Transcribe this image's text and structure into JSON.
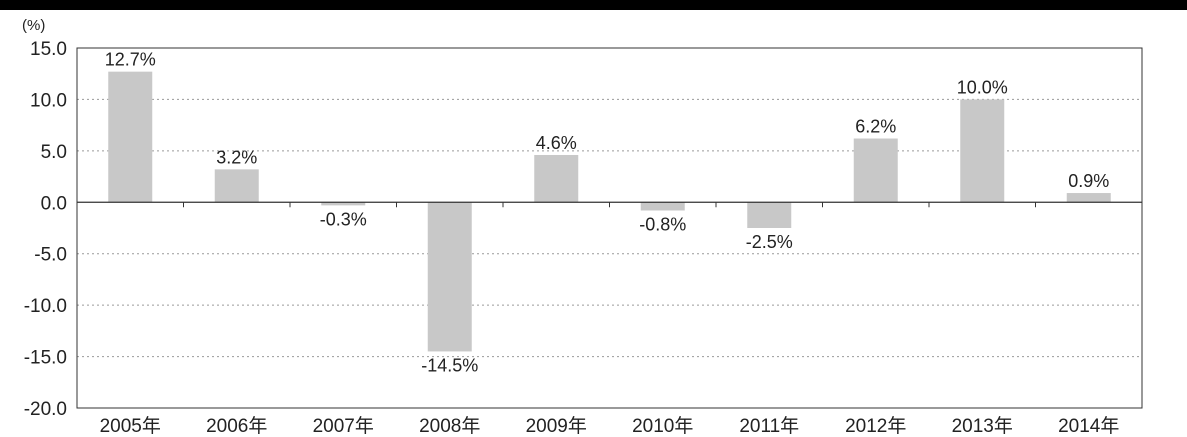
{
  "chart_data": {
    "type": "bar",
    "unit_label": "(%)",
    "categories": [
      "2005年",
      "2006年",
      "2007年",
      "2008年",
      "2009年",
      "2010年",
      "2011年",
      "2012年",
      "2013年",
      "2014年"
    ],
    "values": [
      12.7,
      3.2,
      -0.3,
      -14.5,
      4.6,
      -0.8,
      -2.5,
      6.2,
      10.0,
      0.9
    ],
    "data_labels": [
      "12.7%",
      "3.2%",
      "-0.3%",
      "-14.5%",
      "4.6%",
      "-0.8%",
      "-2.5%",
      "6.2%",
      "10.0%",
      "0.9%"
    ],
    "ylim": [
      -20,
      15
    ],
    "yticks": [
      "15.0",
      "10.0",
      "5.0",
      "0.0",
      "-5.0",
      "-10.0",
      "-15.0",
      "-20.0"
    ],
    "grid": true,
    "bar_color": "#c8c8c8",
    "title": "",
    "xlabel": "",
    "ylabel": ""
  }
}
